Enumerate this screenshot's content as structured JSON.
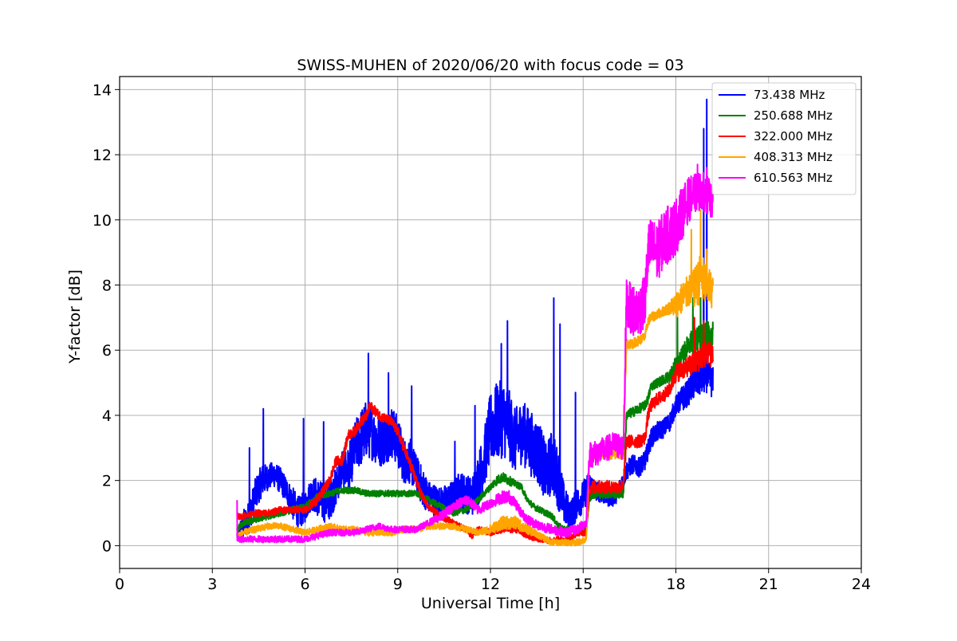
{
  "chart_data": {
    "type": "line",
    "title": "SWISS-MUHEN of 2020/06/20 with focus code = 03",
    "xlabel": "Universal Time [h]",
    "ylabel": "Y-factor [dB]",
    "xlim": [
      0,
      24
    ],
    "ylim": [
      -0.7,
      14.4
    ],
    "xticks": [
      0,
      3,
      6,
      9,
      12,
      15,
      18,
      21,
      24
    ],
    "xtick_labels": [
      "0",
      "3",
      "6",
      "9",
      "12",
      "15",
      "18",
      "21",
      "24"
    ],
    "yticks": [
      0,
      2,
      4,
      6,
      8,
      10,
      12,
      14
    ],
    "ytick_labels": [
      "0",
      "2",
      "4",
      "6",
      "8",
      "10",
      "12",
      "14"
    ],
    "grid": true,
    "legend_position": "top-right",
    "series": [
      {
        "name": "  73.438 MHz",
        "color": "#0000ff",
        "x": [
          3.8,
          4.0,
          4.2,
          4.4,
          4.6,
          4.8,
          5.0,
          5.2,
          5.4,
          5.6,
          5.8,
          6.0,
          6.2,
          6.4,
          6.6,
          6.8,
          7.0,
          7.2,
          7.4,
          7.6,
          7.8,
          8.0,
          8.2,
          8.4,
          8.6,
          8.8,
          9.0,
          9.2,
          9.4,
          9.6,
          9.8,
          10.0,
          10.2,
          10.4,
          10.6,
          10.8,
          11.0,
          11.2,
          11.4,
          11.6,
          11.8,
          12.0,
          12.2,
          12.4,
          12.6,
          12.8,
          13.0,
          13.2,
          13.4,
          13.6,
          13.8,
          14.0,
          14.2,
          14.4,
          14.6,
          14.8,
          15.0,
          15.2,
          15.4,
          15.6,
          15.8,
          16.0,
          16.2,
          16.4,
          16.6,
          16.8,
          17.0,
          17.2,
          17.4,
          17.6,
          17.8,
          18.0,
          18.2,
          18.4,
          18.6,
          18.8,
          19.0,
          19.2
        ],
        "y": [
          0.3,
          0.6,
          0.9,
          1.6,
          2.0,
          2.1,
          2.2,
          2.0,
          1.7,
          1.3,
          1.0,
          1.2,
          1.6,
          1.5,
          1.3,
          1.4,
          1.8,
          2.4,
          2.3,
          3.0,
          3.3,
          3.6,
          3.4,
          3.2,
          3.3,
          3.5,
          3.2,
          2.6,
          2.6,
          2.2,
          1.8,
          1.5,
          1.4,
          1.3,
          1.4,
          1.5,
          1.7,
          1.6,
          1.5,
          2.0,
          2.7,
          3.6,
          3.8,
          3.9,
          3.7,
          3.2,
          3.5,
          3.3,
          3.0,
          2.8,
          2.2,
          2.6,
          2.0,
          1.2,
          0.9,
          1.3,
          1.5,
          1.9,
          1.7,
          1.6,
          1.5,
          1.5,
          1.8,
          2.3,
          2.5,
          2.4,
          2.6,
          3.3,
          3.5,
          3.6,
          3.8,
          4.3,
          4.5,
          4.7,
          5.0,
          5.1,
          5.2,
          5.0
        ],
        "amp": [
          0.2,
          0.5,
          0.5,
          0.5,
          0.5,
          0.4,
          0.4,
          0.4,
          0.4,
          0.5,
          0.5,
          0.5,
          0.5,
          0.6,
          0.6,
          0.6,
          0.6,
          0.6,
          0.7,
          0.8,
          0.9,
          0.9,
          0.8,
          0.8,
          0.8,
          0.8,
          0.8,
          0.7,
          0.7,
          0.6,
          0.6,
          0.5,
          0.5,
          0.5,
          0.5,
          0.5,
          0.6,
          0.6,
          0.6,
          0.8,
          0.9,
          1.1,
          1.2,
          1.2,
          1.1,
          1.0,
          1.0,
          1.0,
          1.0,
          1.0,
          0.9,
          1.0,
          0.9,
          0.6,
          0.5,
          0.5,
          0.5,
          0.4,
          0.3,
          0.3,
          0.3,
          0.3,
          0.3,
          0.3,
          0.3,
          0.3,
          0.3,
          0.3,
          0.3,
          0.3,
          0.3,
          0.3,
          0.4,
          0.4,
          0.5,
          0.5,
          0.5,
          0.5
        ],
        "spikes": [
          [
            4.2,
            3.0
          ],
          [
            4.65,
            4.2
          ],
          [
            5.95,
            3.9
          ],
          [
            6.6,
            3.8
          ],
          [
            8.05,
            5.9
          ],
          [
            8.7,
            5.3
          ],
          [
            9.45,
            4.9
          ],
          [
            10.85,
            3.2
          ],
          [
            11.5,
            4.3
          ],
          [
            12.35,
            6.2
          ],
          [
            12.55,
            6.9
          ],
          [
            13.05,
            3.9
          ],
          [
            14.05,
            7.6
          ],
          [
            14.25,
            6.8
          ],
          [
            14.75,
            4.7
          ],
          [
            18.9,
            12.8
          ],
          [
            19.0,
            13.7
          ]
        ]
      },
      {
        "name": "250.688 MHz",
        "color": "#008000",
        "x": [
          3.8,
          4.0,
          4.4,
          4.8,
          5.2,
          5.6,
          6.0,
          6.4,
          6.8,
          7.2,
          7.6,
          8.0,
          8.4,
          8.8,
          9.2,
          9.6,
          10.0,
          10.4,
          10.8,
          11.2,
          11.6,
          12.0,
          12.2,
          12.4,
          12.6,
          12.8,
          13.0,
          13.2,
          13.4,
          13.6,
          13.8,
          14.0,
          14.2,
          14.4,
          14.8,
          15.1,
          15.2,
          15.3,
          15.6,
          16.0,
          16.3,
          16.4,
          16.6,
          16.8,
          17.0,
          17.1,
          17.2,
          17.4,
          17.6,
          17.8,
          18.0,
          18.2,
          18.4,
          18.6,
          18.8,
          19.0,
          19.2
        ],
        "y": [
          0.5,
          0.7,
          0.8,
          0.9,
          1.0,
          1.1,
          1.2,
          1.5,
          1.6,
          1.7,
          1.7,
          1.6,
          1.6,
          1.6,
          1.6,
          1.6,
          1.4,
          1.2,
          1.0,
          1.1,
          1.4,
          1.8,
          2.0,
          2.1,
          2.0,
          1.9,
          1.8,
          1.4,
          1.2,
          1.1,
          1.0,
          0.9,
          0.6,
          0.5,
          0.5,
          0.5,
          1.4,
          1.6,
          1.6,
          1.6,
          1.6,
          4.0,
          4.1,
          4.2,
          4.3,
          4.5,
          4.9,
          5.0,
          5.1,
          5.2,
          5.5,
          5.8,
          6.2,
          6.3,
          6.3,
          6.4,
          6.4
        ],
        "amp": [
          0.1,
          0.1,
          0.1,
          0.1,
          0.1,
          0.1,
          0.1,
          0.1,
          0.1,
          0.1,
          0.1,
          0.1,
          0.1,
          0.1,
          0.1,
          0.1,
          0.1,
          0.1,
          0.1,
          0.1,
          0.1,
          0.1,
          0.15,
          0.15,
          0.15,
          0.1,
          0.1,
          0.1,
          0.1,
          0.1,
          0.1,
          0.1,
          0.1,
          0.1,
          0.1,
          0.1,
          0.1,
          0.15,
          0.15,
          0.15,
          0.15,
          0.15,
          0.15,
          0.15,
          0.15,
          0.15,
          0.15,
          0.15,
          0.15,
          0.2,
          0.3,
          0.3,
          0.3,
          0.4,
          0.5,
          0.5,
          0.5
        ],
        "spikes": [
          [
            18.05,
            7.3
          ],
          [
            18.55,
            7.6
          ],
          [
            18.8,
            7.6
          ]
        ]
      },
      {
        "name": "322.000 MHz",
        "color": "#ff0000",
        "x": [
          3.8,
          4.0,
          4.4,
          4.8,
          5.2,
          5.6,
          6.0,
          6.4,
          6.8,
          7.0,
          7.2,
          7.4,
          7.6,
          7.8,
          8.0,
          8.1,
          8.4,
          8.8,
          9.0,
          9.2,
          9.4,
          9.6,
          9.8,
          10.0,
          10.4,
          10.8,
          11.2,
          11.4,
          11.6,
          12.0,
          12.4,
          12.8,
          13.2,
          13.6,
          14.0,
          14.2,
          14.4,
          14.6,
          14.8,
          15.1,
          15.2,
          15.3,
          15.6,
          16.0,
          16.3,
          16.4,
          16.6,
          16.8,
          17.0,
          17.1,
          17.2,
          17.4,
          17.6,
          17.8,
          18.0,
          18.2,
          18.4,
          18.6,
          18.8,
          19.0,
          19.2
        ],
        "y": [
          0.9,
          0.9,
          1.0,
          1.0,
          1.1,
          1.1,
          1.1,
          1.4,
          2.0,
          2.6,
          2.6,
          3.4,
          3.5,
          3.8,
          4.0,
          4.3,
          4.0,
          3.8,
          3.5,
          3.0,
          2.5,
          2.0,
          1.5,
          1.2,
          0.9,
          0.7,
          0.5,
          0.3,
          0.5,
          0.4,
          0.5,
          0.5,
          0.3,
          0.2,
          0.15,
          0.2,
          0.2,
          0.2,
          0.4,
          0.4,
          1.7,
          1.8,
          1.8,
          1.8,
          1.8,
          3.2,
          3.2,
          3.2,
          3.3,
          4.0,
          4.3,
          4.5,
          4.6,
          4.8,
          5.3,
          5.4,
          5.5,
          5.6,
          5.8,
          5.9,
          5.9
        ],
        "amp": [
          0.1,
          0.1,
          0.1,
          0.1,
          0.1,
          0.1,
          0.1,
          0.15,
          0.15,
          0.15,
          0.15,
          0.15,
          0.15,
          0.15,
          0.15,
          0.15,
          0.15,
          0.15,
          0.15,
          0.15,
          0.15,
          0.15,
          0.1,
          0.1,
          0.1,
          0.1,
          0.1,
          0.1,
          0.1,
          0.1,
          0.1,
          0.1,
          0.1,
          0.1,
          0.1,
          0.1,
          0.1,
          0.1,
          0.1,
          0.1,
          0.15,
          0.2,
          0.2,
          0.2,
          0.2,
          0.2,
          0.2,
          0.2,
          0.2,
          0.2,
          0.2,
          0.2,
          0.2,
          0.2,
          0.3,
          0.3,
          0.3,
          0.4,
          0.4,
          0.4,
          0.4
        ],
        "spikes": [
          [
            18.6,
            7.0
          ],
          [
            18.9,
            6.9
          ]
        ]
      },
      {
        "name": "408.313 MHz",
        "color": "#ffa500",
        "x": [
          3.8,
          4.0,
          4.4,
          4.8,
          5.2,
          5.6,
          6.0,
          6.4,
          6.8,
          7.2,
          7.6,
          8.0,
          8.4,
          8.8,
          9.2,
          9.6,
          10.0,
          10.4,
          10.8,
          11.2,
          11.6,
          12.0,
          12.4,
          12.8,
          13.2,
          13.6,
          14.0,
          14.4,
          14.8,
          15.1,
          15.2,
          15.3,
          15.6,
          16.0,
          16.3,
          16.4,
          16.6,
          16.8,
          17.0,
          17.1,
          17.2,
          17.4,
          17.6,
          17.8,
          18.0,
          18.2,
          18.4,
          18.6,
          18.8,
          19.0,
          19.2
        ],
        "y": [
          0.3,
          0.4,
          0.5,
          0.6,
          0.6,
          0.5,
          0.4,
          0.5,
          0.6,
          0.5,
          0.5,
          0.4,
          0.4,
          0.4,
          0.5,
          0.5,
          0.6,
          0.6,
          0.6,
          0.5,
          0.4,
          0.5,
          0.7,
          0.7,
          0.5,
          0.3,
          0.1,
          0.1,
          0.1,
          0.2,
          2.6,
          2.8,
          2.8,
          2.8,
          2.8,
          6.2,
          6.2,
          6.3,
          6.4,
          6.9,
          7.0,
          7.1,
          7.2,
          7.3,
          7.4,
          7.6,
          7.8,
          7.9,
          8.2,
          8.0,
          7.8
        ],
        "amp": [
          0.1,
          0.1,
          0.1,
          0.1,
          0.1,
          0.1,
          0.1,
          0.1,
          0.1,
          0.1,
          0.1,
          0.1,
          0.1,
          0.1,
          0.1,
          0.1,
          0.1,
          0.1,
          0.1,
          0.1,
          0.1,
          0.15,
          0.2,
          0.2,
          0.15,
          0.1,
          0.1,
          0.1,
          0.1,
          0.1,
          0.15,
          0.15,
          0.15,
          0.15,
          0.15,
          0.15,
          0.15,
          0.15,
          0.15,
          0.15,
          0.15,
          0.15,
          0.15,
          0.2,
          0.4,
          0.5,
          0.5,
          0.6,
          0.8,
          0.7,
          0.5
        ],
        "spikes": [
          [
            18.5,
            9.7
          ],
          [
            18.8,
            10.3
          ],
          [
            19.0,
            9.1
          ]
        ]
      },
      {
        "name": "610.563 MHz",
        "color": "#ff00ff",
        "x": [
          3.8,
          4.0,
          4.4,
          4.8,
          5.2,
          5.6,
          6.0,
          6.4,
          6.8,
          7.2,
          7.6,
          8.0,
          8.4,
          8.8,
          9.2,
          9.6,
          10.0,
          10.4,
          10.8,
          11.2,
          11.4,
          11.6,
          12.0,
          12.4,
          12.6,
          12.8,
          13.0,
          13.2,
          13.6,
          14.0,
          14.4,
          14.8,
          15.1,
          15.2,
          15.3,
          15.6,
          16.0,
          16.3,
          16.4,
          16.6,
          16.8,
          17.0,
          17.1,
          17.2,
          17.4,
          17.6,
          17.8,
          18.0,
          18.2,
          18.4,
          18.6,
          18.8,
          19.0,
          19.2
        ],
        "y": [
          0.2,
          0.2,
          0.2,
          0.2,
          0.2,
          0.2,
          0.2,
          0.3,
          0.4,
          0.4,
          0.4,
          0.5,
          0.6,
          0.5,
          0.5,
          0.5,
          0.7,
          0.9,
          1.2,
          1.4,
          1.3,
          1.1,
          1.3,
          1.5,
          1.5,
          1.3,
          1.0,
          0.8,
          0.6,
          0.5,
          0.4,
          0.5,
          0.7,
          2.8,
          2.8,
          2.9,
          3.1,
          3.0,
          7.5,
          7.2,
          7.2,
          7.5,
          9.0,
          9.2,
          9.0,
          9.4,
          9.6,
          9.8,
          10.2,
          10.6,
          10.8,
          10.9,
          10.8,
          10.5
        ],
        "amp": [
          0.1,
          0.1,
          0.1,
          0.1,
          0.1,
          0.1,
          0.1,
          0.1,
          0.1,
          0.1,
          0.1,
          0.1,
          0.1,
          0.1,
          0.1,
          0.1,
          0.1,
          0.15,
          0.15,
          0.15,
          0.15,
          0.15,
          0.15,
          0.2,
          0.2,
          0.15,
          0.15,
          0.15,
          0.15,
          0.15,
          0.15,
          0.15,
          0.15,
          0.4,
          0.4,
          0.4,
          0.4,
          0.4,
          0.7,
          0.8,
          0.8,
          0.8,
          0.9,
          0.9,
          0.9,
          0.9,
          0.9,
          0.9,
          0.8,
          0.7,
          0.6,
          0.6,
          0.6,
          0.5
        ],
        "spikes": [
          [
            3.8,
            1.4
          ],
          [
            18.7,
            11.7
          ],
          [
            19.0,
            11.6
          ]
        ]
      }
    ]
  }
}
